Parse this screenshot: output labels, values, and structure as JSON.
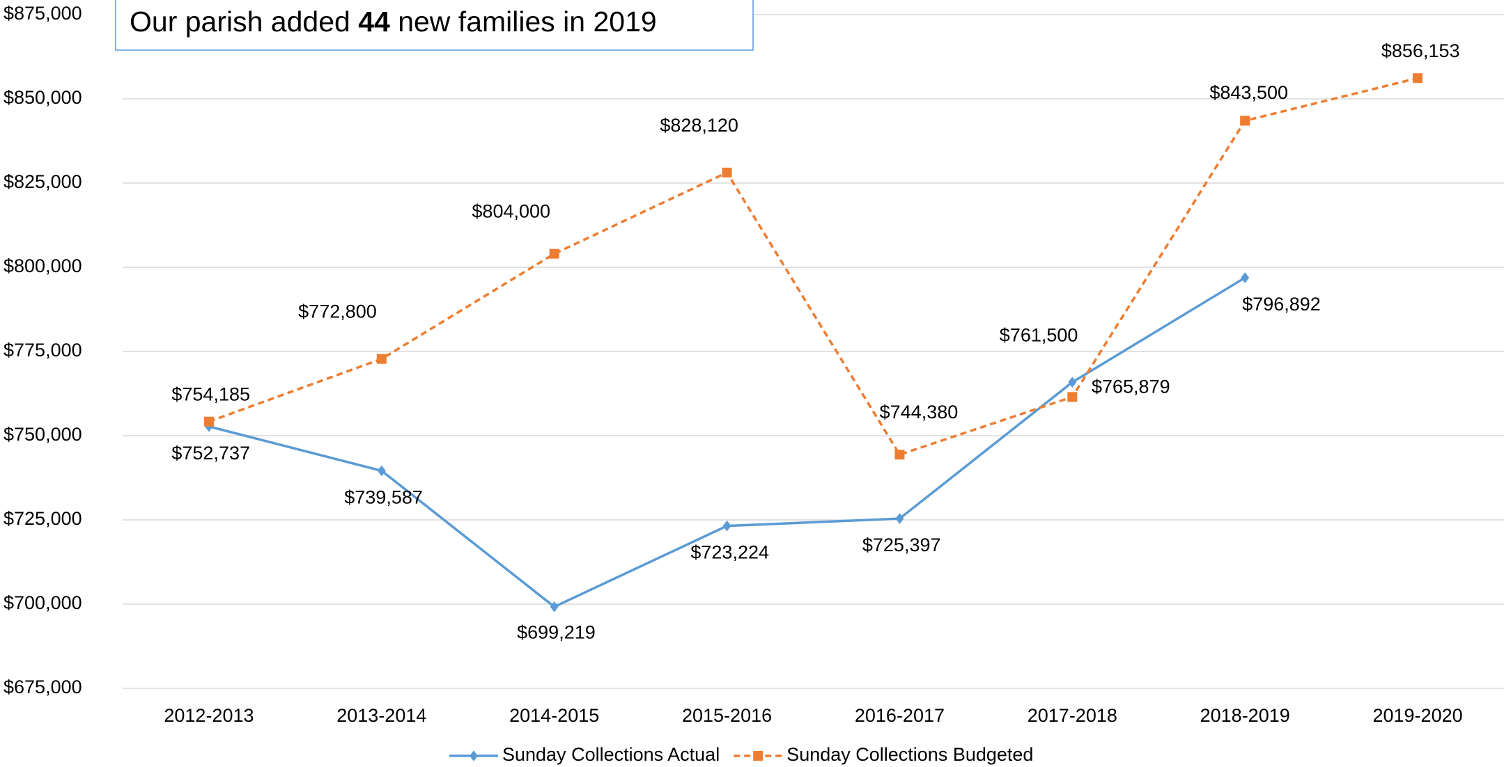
{
  "chart_data": {
    "type": "line",
    "title": {
      "before": "Our parish added ",
      "bold": "44",
      "after": " new families in 2019"
    },
    "categories": [
      "2012-2013",
      "2013-2014",
      "2014-2015",
      "2015-2016",
      "2016-2017",
      "2017-2018",
      "2018-2019",
      "2019-2020"
    ],
    "series": [
      {
        "name": "Sunday Collections Actual",
        "color": "#5b9bd5",
        "marker": "diamond",
        "dash": false,
        "values": [
          752737,
          739587,
          699219,
          723224,
          725397,
          765879,
          796892,
          null
        ],
        "value_labels": [
          "$752,737",
          "$739,587",
          "$699,219",
          "$723,224",
          "$725,397",
          "$765,879",
          "$796,892",
          null
        ]
      },
      {
        "name": "Sunday Collections Budgeted",
        "color": "#ed7d31",
        "marker": "square",
        "dash": true,
        "values": [
          754185,
          772800,
          804000,
          828120,
          744380,
          761500,
          843500,
          856153
        ],
        "value_labels": [
          "$754,185",
          "$772,800",
          "$804,000",
          "$828,120",
          "$744,380",
          "$761,500",
          "$843,500",
          "$856,153"
        ]
      }
    ],
    "ylim": [
      675000,
      875000
    ],
    "yticks": [
      {
        "value": 675000,
        "label": "$675,000"
      },
      {
        "value": 700000,
        "label": "$700,000"
      },
      {
        "value": 725000,
        "label": "$725,000"
      },
      {
        "value": 750000,
        "label": "$750,000"
      },
      {
        "value": 775000,
        "label": "$775,000"
      },
      {
        "value": 800000,
        "label": "$800,000"
      },
      {
        "value": 825000,
        "label": "$825,000"
      },
      {
        "value": 850000,
        "label": "$850,000"
      },
      {
        "value": 875000,
        "label": "$875,000"
      }
    ],
    "grid": true,
    "legend": "bottom"
  }
}
